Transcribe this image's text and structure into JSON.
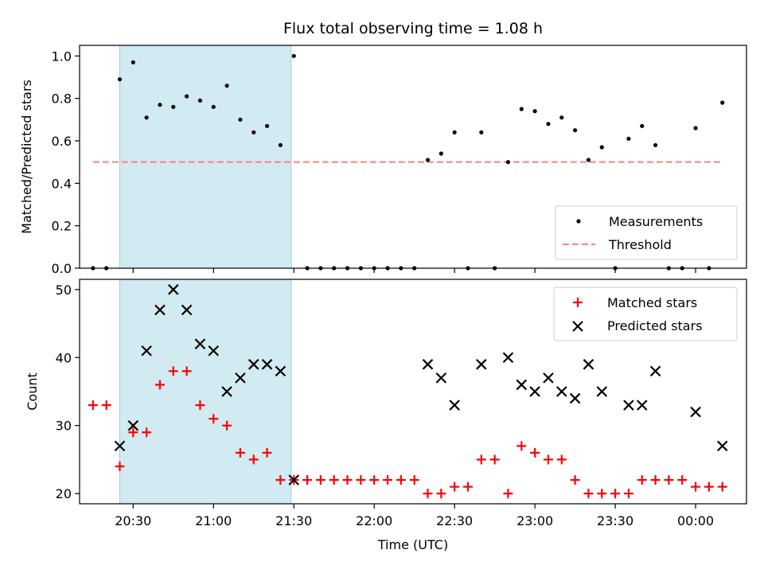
{
  "chart_data": {
    "title": "Flux total observing time = 1.08 h",
    "xlabel": "Time (UTC)",
    "x_ticks": [
      "20:30",
      "21:00",
      "21:30",
      "22:00",
      "22:30",
      "23:00",
      "23:30",
      "00:00"
    ],
    "x_range": [
      "20:10",
      "00:19"
    ],
    "shaded_interval": [
      "20:25",
      "21:29"
    ],
    "shade_color": "#add8e6",
    "panels": [
      {
        "type": "scatter",
        "ylabel": "Matched/Predicted stars",
        "ylim": [
          0,
          1.05
        ],
        "yticks": [
          "0.0",
          "0.2",
          "0.4",
          "0.6",
          "0.8",
          "1.0"
        ],
        "legend_position": "lower right",
        "threshold": {
          "name": "Threshold",
          "value": 0.5,
          "from": "20:15",
          "to": "00:10",
          "color": "#ff8080"
        },
        "series": [
          {
            "name": "Measurements",
            "color": "#000000",
            "x": [
              "20:15",
              "20:20",
              "20:25",
              "20:30",
              "20:35",
              "20:40",
              "20:45",
              "20:50",
              "20:55",
              "21:00",
              "21:05",
              "21:10",
              "21:15",
              "21:20",
              "21:25",
              "21:30",
              "21:35",
              "21:40",
              "21:45",
              "21:50",
              "21:55",
              "22:00",
              "22:05",
              "22:10",
              "22:15",
              "22:20",
              "22:25",
              "22:30",
              "22:35",
              "22:40",
              "22:45",
              "22:50",
              "22:55",
              "23:00",
              "23:05",
              "23:10",
              "23:15",
              "23:20",
              "23:25",
              "23:30",
              "23:35",
              "23:40",
              "23:45",
              "23:50",
              "23:55",
              "00:00",
              "00:05",
              "00:10"
            ],
            "y": [
              0,
              0,
              0.89,
              0.97,
              0.71,
              0.77,
              0.76,
              0.81,
              0.79,
              0.76,
              0.86,
              0.7,
              0.64,
              0.67,
              0.58,
              1.0,
              0,
              0,
              0,
              0,
              0,
              0,
              0,
              0,
              0,
              0.51,
              0.54,
              0.64,
              0,
              0.64,
              0,
              0.5,
              0.75,
              0.74,
              0.68,
              0.71,
              0.65,
              0.51,
              0.57,
              0,
              0.61,
              0.67,
              0.58,
              0,
              0,
              0.66,
              0,
              0.78
            ]
          }
        ]
      },
      {
        "type": "scatter",
        "ylabel": "Count",
        "ylim": [
          18.5,
          51.5
        ],
        "yticks": [
          "20",
          "30",
          "40",
          "50"
        ],
        "legend_position": "upper right",
        "series": [
          {
            "name": "Matched stars",
            "color": "#ff0000",
            "marker": "+",
            "x": [
              "20:15",
              "20:20",
              "20:25",
              "20:30",
              "20:35",
              "20:40",
              "20:45",
              "20:50",
              "20:55",
              "21:00",
              "21:05",
              "21:10",
              "21:15",
              "21:20",
              "21:25",
              "21:30",
              "21:35",
              "21:40",
              "21:45",
              "21:50",
              "21:55",
              "22:00",
              "22:05",
              "22:10",
              "22:15",
              "22:20",
              "22:25",
              "22:30",
              "22:35",
              "22:40",
              "22:45",
              "22:50",
              "22:55",
              "23:00",
              "23:05",
              "23:10",
              "23:15",
              "23:20",
              "23:25",
              "23:30",
              "23:35",
              "23:40",
              "23:45",
              "23:50",
              "23:55",
              "00:00",
              "00:05",
              "00:10"
            ],
            "y": [
              33,
              33,
              24,
              29,
              29,
              36,
              38,
              38,
              33,
              31,
              30,
              26,
              25,
              26,
              22,
              22,
              22,
              22,
              22,
              22,
              22,
              22,
              22,
              22,
              22,
              20,
              20,
              21,
              21,
              25,
              25,
              20,
              27,
              26,
              25,
              25,
              22,
              20,
              20,
              20,
              20,
              22,
              22,
              22,
              22,
              21,
              21,
              21
            ]
          },
          {
            "name": "Predicted stars",
            "color": "#000000",
            "marker": "x",
            "x": [
              "20:25",
              "20:30",
              "20:35",
              "20:40",
              "20:45",
              "20:50",
              "20:55",
              "21:00",
              "21:05",
              "21:10",
              "21:15",
              "21:20",
              "21:25",
              "21:30",
              "22:20",
              "22:25",
              "22:30",
              "22:40",
              "22:50",
              "22:55",
              "23:00",
              "23:05",
              "23:10",
              "23:15",
              "23:20",
              "23:25",
              "23:35",
              "23:40",
              "23:45",
              "24:00",
              "24:10"
            ],
            "y": [
              27,
              30,
              41,
              47,
              50,
              47,
              42,
              41,
              35,
              37,
              39,
              39,
              38,
              22,
              39,
              37,
              33,
              39,
              40,
              36,
              35,
              37,
              35,
              34,
              39,
              35,
              33,
              33,
              38,
              32,
              27
            ]
          }
        ]
      }
    ]
  }
}
